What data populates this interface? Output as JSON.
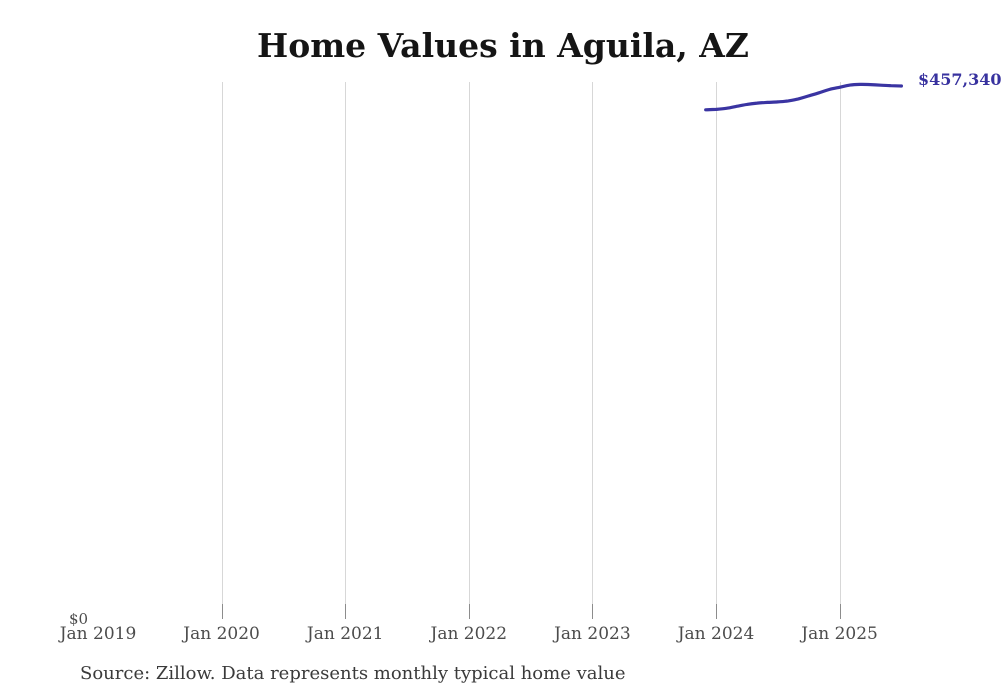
{
  "chart": {
    "title": "Home Values in Aguila, AZ",
    "y_zero_label": "$0",
    "end_label": "$457,340",
    "source_note": "Source: Zillow. Data represents monthly typical home value",
    "colors": {
      "line": "#3a34a2",
      "gridline": "#d7d7d7",
      "tick": "#8c8c8c",
      "end_label": "#38329f"
    }
  },
  "chart_data": {
    "type": "line",
    "title": "Home Values in Aguila, AZ",
    "xlabel": "",
    "ylabel": "",
    "x_ticks": [
      "Jan 2019",
      "Jan 2020",
      "Jan 2021",
      "Jan 2022",
      "Jan 2023",
      "Jan 2024",
      "Jan 2025"
    ],
    "ylim": [
      0,
      461000
    ],
    "grid": "vertical-only",
    "legend": "none",
    "annotations": [
      {
        "text": "$457,340",
        "position": "line-end"
      },
      {
        "text": "$0",
        "position": "y-axis-bottom"
      }
    ],
    "series": [
      {
        "name": "Monthly typical home value (USD)",
        "x": [
          "2023-12",
          "2024-01",
          "2024-02",
          "2024-03",
          "2024-04",
          "2024-05",
          "2024-06",
          "2024-07",
          "2024-08",
          "2024-09",
          "2024-10",
          "2024-11",
          "2024-12",
          "2025-01",
          "2025-02",
          "2025-03",
          "2025-04",
          "2025-05",
          "2025-06",
          "2025-07"
        ],
        "values": [
          436900,
          437300,
          438200,
          439900,
          441600,
          442700,
          443300,
          443700,
          444600,
          446300,
          448800,
          451500,
          454300,
          456200,
          458100,
          458700,
          458500,
          458000,
          457600,
          457340
        ]
      }
    ],
    "source": "Source: Zillow. Data represents monthly typical home value"
  }
}
